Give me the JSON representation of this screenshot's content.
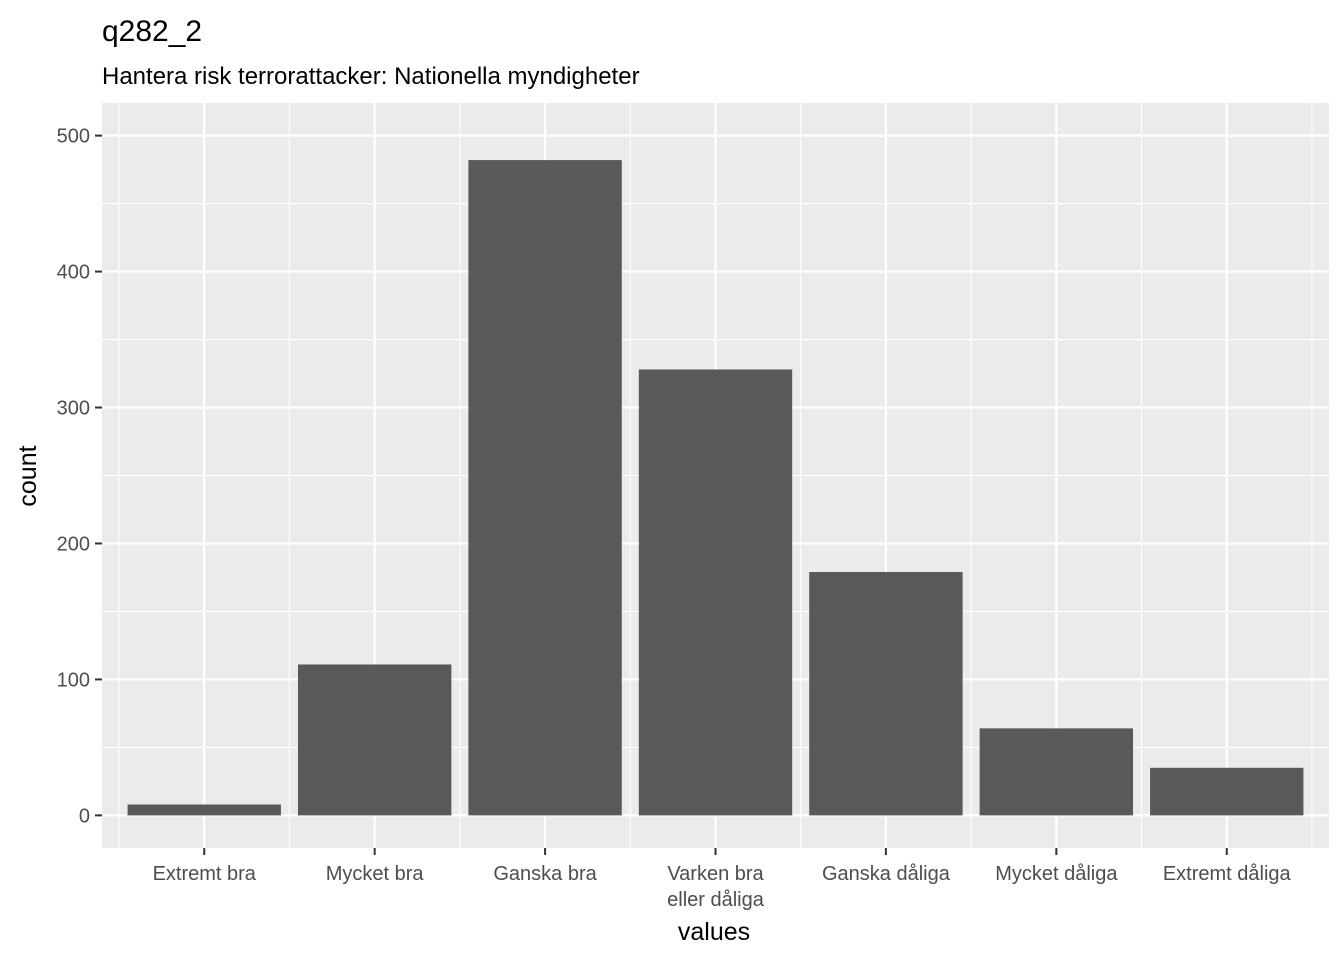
{
  "chart_data": {
    "type": "bar",
    "title": "q282_2",
    "subtitle": "Hantera risk terrorattacker: Nationella myndigheter",
    "xlabel": "values",
    "ylabel": "count",
    "categories": [
      "Extremt bra",
      "Mycket bra",
      "Ganska bra",
      "Varken bra\neller dåliga",
      "Ganska dåliga",
      "Mycket dåliga",
      "Extremt dåliga"
    ],
    "values": [
      8,
      111,
      482,
      328,
      179,
      64,
      35
    ],
    "ylim": [
      -24,
      524
    ],
    "yticks": [
      0,
      100,
      200,
      300,
      400,
      500
    ],
    "grid": true,
    "colors": {
      "panel": "#ebebeb",
      "bar": "#595959",
      "grid": "#ffffff"
    }
  }
}
